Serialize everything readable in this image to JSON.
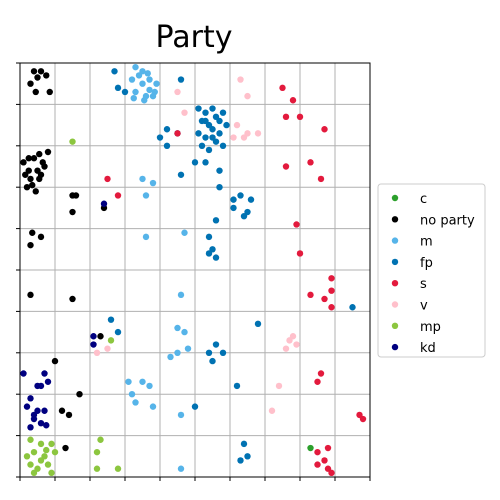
{
  "chart_data": {
    "type": "scatter",
    "title": "Party",
    "xlabel": "",
    "ylabel": "",
    "grid": true,
    "x_ticks": 10,
    "y_ticks": 10,
    "xlim": [
      0,
      10
    ],
    "ylim": [
      0,
      10
    ],
    "tick_labels_visible": false,
    "legend": {
      "placement": "right",
      "entries": [
        "c",
        "no party",
        "m",
        "fp",
        "s",
        "v",
        "mp",
        "kd"
      ]
    },
    "series": [
      {
        "name": "c",
        "color": "#2ca02c",
        "points": [
          [
            8.3,
            0.7
          ]
        ]
      },
      {
        "name": "no party",
        "color": "#000000",
        "points": [
          [
            0.4,
            9.8
          ],
          [
            0.6,
            9.8
          ],
          [
            0.5,
            9.65
          ],
          [
            0.75,
            9.7
          ],
          [
            0.3,
            9.5
          ],
          [
            0.45,
            9.3
          ],
          [
            0.85,
            9.3
          ],
          [
            0.1,
            7.6
          ],
          [
            0.25,
            7.4
          ],
          [
            0.4,
            7.7
          ],
          [
            0.55,
            7.8
          ],
          [
            0.3,
            7.2
          ],
          [
            0.6,
            7.3
          ],
          [
            0.2,
            7.0
          ],
          [
            0.45,
            6.9
          ],
          [
            0.7,
            7.5
          ],
          [
            0.15,
            7.3
          ],
          [
            0.5,
            7.4
          ],
          [
            0.8,
            7.85
          ],
          [
            0.35,
            7.05
          ],
          [
            0.65,
            7.6
          ],
          [
            0.25,
            7.7
          ],
          [
            0.55,
            7.2
          ],
          [
            1.5,
            6.8
          ],
          [
            1.6,
            6.8
          ],
          [
            1.5,
            6.4
          ],
          [
            2.4,
            6.5
          ],
          [
            0.35,
            5.9
          ],
          [
            0.6,
            5.8
          ],
          [
            0.3,
            5.6
          ],
          [
            0.3,
            4.4
          ],
          [
            1.5,
            4.3
          ],
          [
            2.3,
            3.4
          ],
          [
            1.0,
            2.8
          ],
          [
            1.7,
            2.0
          ],
          [
            1.4,
            1.5
          ],
          [
            1.2,
            1.6
          ],
          [
            1.3,
            0.7
          ]
        ]
      },
      {
        "name": "m",
        "color": "#56b4e9",
        "points": [
          [
            3.3,
            9.9
          ],
          [
            3.5,
            9.8
          ],
          [
            3.2,
            9.6
          ],
          [
            3.5,
            9.5
          ],
          [
            3.7,
            9.6
          ],
          [
            3.8,
            9.2
          ],
          [
            3.3,
            9.3
          ],
          [
            3.6,
            9.2
          ],
          [
            3.9,
            9.5
          ],
          [
            3.4,
            9.7
          ],
          [
            3.7,
            9.35
          ],
          [
            3.55,
            9.1
          ],
          [
            3.85,
            9.3
          ],
          [
            3.25,
            9.15
          ],
          [
            3.65,
            9.75
          ],
          [
            3.5,
            7.2
          ],
          [
            3.8,
            7.1
          ],
          [
            3.6,
            6.8
          ],
          [
            3.6,
            5.8
          ],
          [
            4.7,
            5.9
          ],
          [
            4.6,
            4.4
          ],
          [
            4.5,
            3.6
          ],
          [
            4.7,
            3.5
          ],
          [
            4.8,
            3.1
          ],
          [
            4.5,
            3.0
          ],
          [
            4.3,
            2.9
          ],
          [
            3.1,
            2.3
          ],
          [
            3.5,
            2.3
          ],
          [
            3.2,
            2.0
          ],
          [
            3.7,
            2.2
          ],
          [
            3.8,
            1.7
          ],
          [
            3.3,
            1.8
          ],
          [
            4.6,
            1.5
          ],
          [
            4.6,
            0.2
          ]
        ]
      },
      {
        "name": "fp",
        "color": "#0072b2",
        "points": [
          [
            2.7,
            9.8
          ],
          [
            4.6,
            9.6
          ],
          [
            2.8,
            9.4
          ],
          [
            3.0,
            9.3
          ],
          [
            5.1,
            8.9
          ],
          [
            5.3,
            8.8
          ],
          [
            5.5,
            8.9
          ],
          [
            5.2,
            8.6
          ],
          [
            5.4,
            8.5
          ],
          [
            5.6,
            8.7
          ],
          [
            5.8,
            8.8
          ],
          [
            5.1,
            8.3
          ],
          [
            5.3,
            8.2
          ],
          [
            5.5,
            8.4
          ],
          [
            5.7,
            8.3
          ],
          [
            5.2,
            8.0
          ],
          [
            5.4,
            7.9
          ],
          [
            5.6,
            8.1
          ],
          [
            5.8,
            8.0
          ],
          [
            5.3,
            8.6
          ],
          [
            5.5,
            8.2
          ],
          [
            5.7,
            8.6
          ],
          [
            5.9,
            8.5
          ],
          [
            4.2,
            8.4
          ],
          [
            4.5,
            8.3
          ],
          [
            4.2,
            8.0
          ],
          [
            4.0,
            8.2
          ],
          [
            5.0,
            7.6
          ],
          [
            5.3,
            7.6
          ],
          [
            4.6,
            7.3
          ],
          [
            5.7,
            7.4
          ],
          [
            5.7,
            7.0
          ],
          [
            6.1,
            6.7
          ],
          [
            6.3,
            6.8
          ],
          [
            6.6,
            6.7
          ],
          [
            6.1,
            6.5
          ],
          [
            6.5,
            6.4
          ],
          [
            6.4,
            6.3
          ],
          [
            5.6,
            6.2
          ],
          [
            5.4,
            5.8
          ],
          [
            5.5,
            5.5
          ],
          [
            5.6,
            5.3
          ],
          [
            5.4,
            5.4
          ],
          [
            9.5,
            4.1
          ],
          [
            2.6,
            3.8
          ],
          [
            2.8,
            3.5
          ],
          [
            5.6,
            3.2
          ],
          [
            5.4,
            3.0
          ],
          [
            5.8,
            3.0
          ],
          [
            5.5,
            2.8
          ],
          [
            6.8,
            3.7
          ],
          [
            6.2,
            2.2
          ],
          [
            5.0,
            1.7
          ],
          [
            6.4,
            0.8
          ],
          [
            6.5,
            0.5
          ],
          [
            6.3,
            0.4
          ]
        ]
      },
      {
        "name": "s",
        "color": "#e31a3d",
        "points": [
          [
            7.5,
            9.4
          ],
          [
            7.8,
            9.1
          ],
          [
            7.6,
            8.7
          ],
          [
            8.0,
            8.7
          ],
          [
            8.7,
            8.4
          ],
          [
            4.5,
            8.3
          ],
          [
            7.6,
            7.5
          ],
          [
            8.3,
            7.6
          ],
          [
            8.6,
            7.2
          ],
          [
            2.5,
            7.2
          ],
          [
            2.8,
            6.8
          ],
          [
            7.9,
            6.1
          ],
          [
            8.0,
            5.4
          ],
          [
            8.9,
            4.8
          ],
          [
            8.9,
            4.5
          ],
          [
            8.3,
            4.4
          ],
          [
            8.7,
            4.3
          ],
          [
            8.9,
            4.1
          ],
          [
            8.6,
            2.5
          ],
          [
            8.5,
            2.3
          ],
          [
            9.7,
            1.5
          ],
          [
            9.8,
            1.4
          ],
          [
            8.5,
            0.6
          ],
          [
            8.8,
            0.7
          ],
          [
            8.7,
            0.4
          ],
          [
            8.5,
            0.3
          ],
          [
            8.8,
            0.2
          ],
          [
            8.9,
            0.1
          ]
        ]
      },
      {
        "name": "v",
        "color": "#ffc0cb",
        "points": [
          [
            6.3,
            9.6
          ],
          [
            4.5,
            9.3
          ],
          [
            6.5,
            9.2
          ],
          [
            4.7,
            8.8
          ],
          [
            6.2,
            8.5
          ],
          [
            6.5,
            8.3
          ],
          [
            6.8,
            8.3
          ],
          [
            6.1,
            8.2
          ],
          [
            6.4,
            8.2
          ],
          [
            7.8,
            3.4
          ],
          [
            7.7,
            3.3
          ],
          [
            7.9,
            3.2
          ],
          [
            7.6,
            3.1
          ],
          [
            2.2,
            3.0
          ],
          [
            2.5,
            3.1
          ],
          [
            7.4,
            2.2
          ],
          [
            7.2,
            1.6
          ]
        ]
      },
      {
        "name": "mp",
        "color": "#8cc63f",
        "points": [
          [
            1.5,
            8.1
          ],
          [
            2.6,
            3.3
          ],
          [
            0.3,
            0.9
          ],
          [
            0.6,
            0.8
          ],
          [
            0.9,
            0.8
          ],
          [
            0.4,
            0.6
          ],
          [
            0.7,
            0.5
          ],
          [
            1.0,
            0.6
          ],
          [
            0.3,
            0.3
          ],
          [
            0.5,
            0.2
          ],
          [
            0.8,
            0.3
          ],
          [
            0.6,
            0.4
          ],
          [
            0.4,
            0.1
          ],
          [
            0.9,
            0.1
          ],
          [
            0.2,
            0.5
          ],
          [
            0.75,
            0.65
          ],
          [
            2.3,
            0.9
          ],
          [
            2.2,
            0.6
          ],
          [
            2.2,
            0.2
          ],
          [
            2.8,
            0.2
          ]
        ]
      },
      {
        "name": "kd",
        "color": "#000080",
        "points": [
          [
            2.4,
            6.6
          ],
          [
            2.1,
            3.4
          ],
          [
            2.1,
            3.2
          ],
          [
            0.1,
            2.5
          ],
          [
            0.5,
            2.2
          ],
          [
            0.6,
            2.2
          ],
          [
            0.7,
            2.5
          ],
          [
            0.8,
            2.3
          ],
          [
            0.3,
            1.9
          ],
          [
            0.2,
            1.7
          ],
          [
            0.5,
            1.6
          ],
          [
            0.7,
            1.6
          ],
          [
            0.4,
            1.4
          ],
          [
            0.3,
            1.2
          ],
          [
            0.6,
            1.3
          ],
          [
            0.75,
            1.25
          ],
          [
            0.4,
            1.5
          ]
        ]
      }
    ]
  }
}
